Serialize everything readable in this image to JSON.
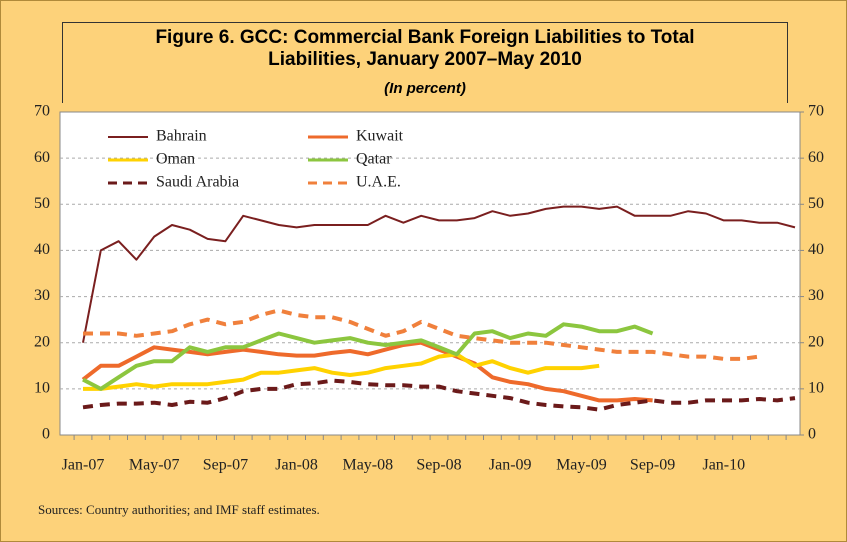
{
  "chart_data": {
    "type": "line",
    "title": "Figure 6. GCC: Commercial Bank Foreign Liabilities to Total Liabilities, January 2007–May 2010",
    "subtitle": "(In percent)",
    "note": "Sources: Country authorities; and IMF staff estimates.",
    "categories": [
      "Jan-07",
      null,
      null,
      null,
      "May-07",
      null,
      null,
      null,
      "Sep-07",
      null,
      null,
      null,
      "Jan-08",
      null,
      null,
      null,
      "May-08",
      null,
      null,
      null,
      "Sep-08",
      null,
      null,
      null,
      "Jan-09",
      null,
      null,
      null,
      "May-09",
      null,
      null,
      null,
      "Sep-09",
      null,
      null,
      null,
      "Jan-10",
      null,
      null,
      null,
      null
    ],
    "ylim": [
      0,
      70
    ],
    "yticks": [
      0,
      10,
      20,
      30,
      40,
      50,
      60,
      70
    ],
    "y2lim": [
      0,
      70
    ],
    "y2ticks": [
      0,
      10,
      20,
      30,
      40,
      50,
      60,
      70
    ],
    "grid": true,
    "legend": "top-left",
    "series": [
      {
        "name": "Bahrain",
        "color": "#7a1f1f",
        "dashed": false,
        "values": [
          20,
          40,
          42,
          38,
          43,
          45.5,
          44.5,
          42.5,
          42,
          47.5,
          46.5,
          45.5,
          45,
          45.5,
          45.5,
          45.5,
          45.5,
          47.5,
          46,
          47.5,
          46.5,
          46.5,
          47,
          48.5,
          47.5,
          48,
          49,
          49.5,
          49.5,
          49,
          49.5,
          47.5,
          47.5,
          47.5,
          48.5,
          48,
          46.5,
          46.5,
          46,
          46,
          45
        ]
      },
      {
        "name": "Kuwait",
        "color": "#ee6a2b",
        "dashed": false,
        "values": [
          12,
          15,
          15,
          17,
          19,
          18.5,
          18,
          17.5,
          18,
          18.5,
          18,
          17.5,
          17.2,
          17.2,
          17.8,
          18.2,
          17.5,
          18.5,
          19.5,
          20,
          18.5,
          17,
          15.5,
          12.5,
          11.5,
          11,
          10,
          9.5,
          8.5,
          7.5,
          7.5,
          7.8,
          7.5,
          null,
          null,
          null,
          null,
          null,
          null,
          null,
          null
        ]
      },
      {
        "name": "Oman",
        "color": "#ffd200",
        "dashed": false,
        "values": [
          10,
          10,
          10.5,
          11,
          10.5,
          11,
          11,
          11,
          11.5,
          12,
          13.5,
          13.5,
          14,
          14.5,
          13.5,
          13,
          13.5,
          14.5,
          15,
          15.5,
          17,
          17.5,
          15,
          16,
          14.5,
          13.5,
          14.5,
          14.5,
          14.5,
          15,
          null,
          null,
          null,
          null,
          null,
          null,
          null,
          null,
          null,
          null,
          null
        ]
      },
      {
        "name": "Qatar",
        "color": "#8cc63f",
        "dashed": false,
        "values": [
          12,
          10,
          12.5,
          15,
          16,
          16,
          19,
          18,
          19,
          19,
          20.5,
          22,
          21,
          20,
          20.5,
          21,
          20,
          19.5,
          20,
          20.5,
          19,
          17.5,
          22,
          22.5,
          21,
          22,
          21.5,
          24,
          23.5,
          22.5,
          22.5,
          23.5,
          22,
          null,
          null,
          null,
          null,
          null,
          null,
          null,
          null
        ]
      },
      {
        "name": "Saudi Arabia",
        "color": "#6b1a1a",
        "dashed": true,
        "values": [
          6,
          6.5,
          6.8,
          6.8,
          7,
          6.5,
          7.2,
          7,
          8,
          9.5,
          10,
          10,
          11,
          11.2,
          11.8,
          11.5,
          11,
          10.8,
          10.8,
          10.5,
          10.5,
          9.5,
          9,
          8.5,
          8,
          7,
          6.5,
          6.2,
          6,
          5.5,
          6.5,
          7,
          7.5,
          7,
          7,
          7.5,
          7.5,
          7.5,
          7.8,
          7.5,
          8
        ]
      },
      {
        "name": "U.A.E.",
        "color": "#f0803c",
        "dashed": true,
        "values": [
          22,
          22,
          22,
          21.5,
          22,
          22.5,
          24,
          25,
          24,
          24.5,
          26,
          27,
          26,
          25.5,
          25.5,
          24.5,
          23,
          21.5,
          22.5,
          24.5,
          23,
          21.5,
          21,
          20.5,
          20,
          20,
          20,
          19.5,
          19,
          18.5,
          18,
          18,
          18,
          17.5,
          17,
          17,
          16.5,
          16.5,
          17,
          null,
          null
        ]
      }
    ]
  }
}
